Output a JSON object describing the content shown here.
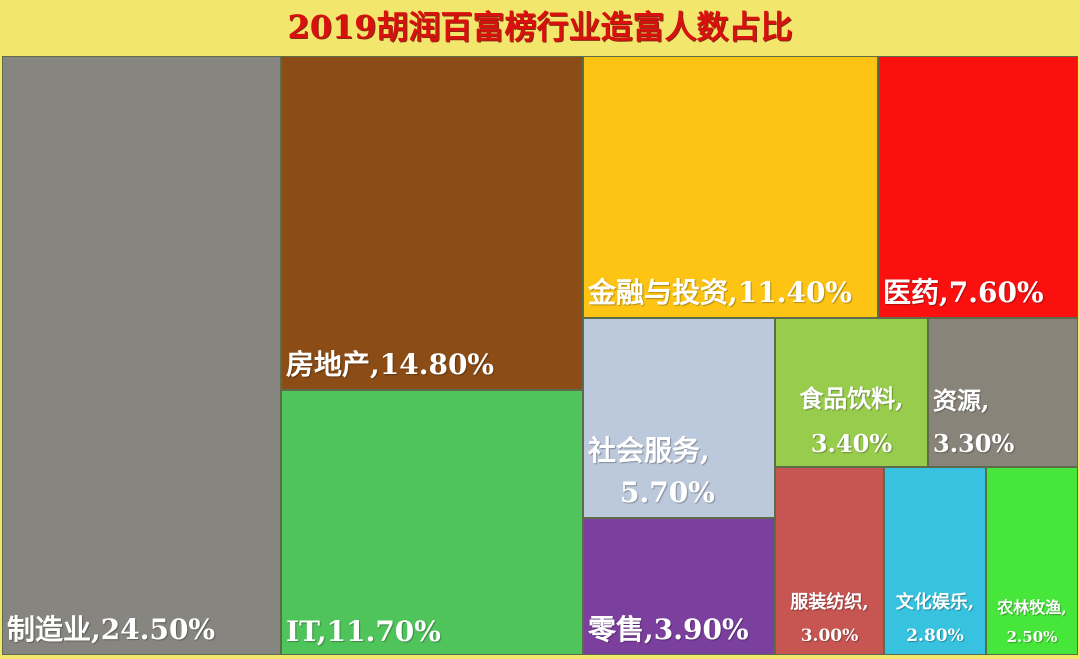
{
  "chart_data": {
    "type": "treemap",
    "title": "2019胡润百富榜行业造富人数占比",
    "unit": "%",
    "items": [
      {
        "name": "制造业",
        "value": 24.5,
        "label": "制造业,24.50%",
        "color": "#878580"
      },
      {
        "name": "房地产",
        "value": 14.8,
        "label": "房地产,14.80%",
        "color": "#8b4c16"
      },
      {
        "name": "IT",
        "value": 11.7,
        "label": "IT,11.70%",
        "color": "#4fc45a"
      },
      {
        "name": "金融与投资",
        "value": 11.4,
        "label": "金融与投资,11.40%",
        "color": "#fdc413"
      },
      {
        "name": "医药",
        "value": 7.6,
        "label": "医药,7.60%",
        "color": "#fb1010"
      },
      {
        "name": "社会服务",
        "value": 5.7,
        "label": "社会服务,",
        "label2": "5.70%",
        "color": "#bcc8dc"
      },
      {
        "name": "零售",
        "value": 3.9,
        "label": "零售,3.90%",
        "color": "#7b3f9d"
      },
      {
        "name": "食品饮料",
        "value": 3.4,
        "label": "食品饮料,",
        "label2": "3.40%",
        "color": "#98cc4c"
      },
      {
        "name": "资源",
        "value": 3.3,
        "label": "资源,",
        "label2": "3.30%",
        "color": "#888479"
      },
      {
        "name": "服装纺织",
        "value": 3.0,
        "label": "服装纺织,",
        "label2": "3.00%",
        "color": "#c75552"
      },
      {
        "name": "文化娱乐",
        "value": 2.8,
        "label": "文化娱乐,",
        "label2": "2.80%",
        "color": "#37c3e0"
      },
      {
        "name": "农林牧渔",
        "value": 2.5,
        "label": "农林牧渔,",
        "label2": "2.50%",
        "color": "#47e63a"
      }
    ]
  }
}
